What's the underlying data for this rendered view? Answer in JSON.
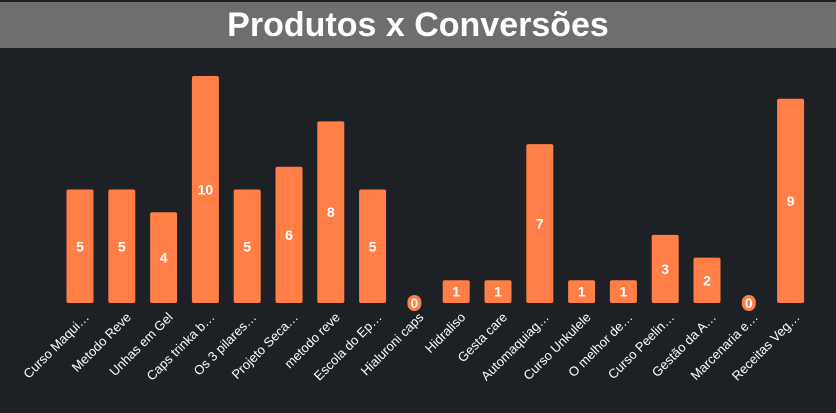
{
  "header": {
    "title": "Produtos x Conversões"
  },
  "colors": {
    "bar": "#ff7f47",
    "background": "#1d2024",
    "title_bar": "#6e6e6e",
    "text": "#ffffff"
  },
  "chart_data": {
    "type": "bar",
    "title": "Produtos x Conversões",
    "xlabel": "",
    "ylabel": "",
    "ylim": [
      0,
      10
    ],
    "grid": false,
    "categories": [
      "Curso Maqui…",
      "Metodo Reve",
      "Unhas em Gel",
      "Caps trinka b…",
      "Os 3 pilares…",
      "Projeto Seca…",
      "metodo reve",
      "Escola do Ep…",
      "Hialuroni caps",
      "Hidraliso",
      "Gesta care",
      "Automaquiag…",
      "Curso Unkulele",
      "O melhor de…",
      "Curso Peelin…",
      "Gestão da A…",
      "Marcenaria e…",
      "Receitas Veg…"
    ],
    "values": [
      5,
      5,
      4,
      10,
      5,
      6,
      8,
      5,
      0,
      1,
      1,
      7,
      1,
      1,
      3,
      2,
      0,
      9
    ]
  }
}
